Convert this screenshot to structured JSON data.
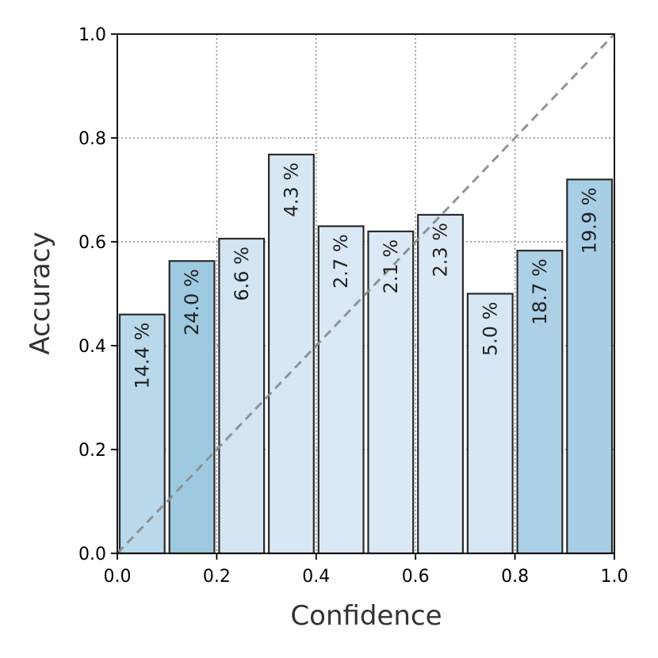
{
  "chart_data": {
    "type": "bar",
    "title": "",
    "xlabel": "Confidence",
    "ylabel": "Accuracy",
    "xlim": [
      0.0,
      1.0
    ],
    "ylim": [
      0.0,
      1.0
    ],
    "grid": true,
    "bins": [
      {
        "x_start": 0.0,
        "x_end": 0.1,
        "accuracy": 0.46,
        "label": "14.4 %",
        "color": "#b9d9eb"
      },
      {
        "x_start": 0.1,
        "x_end": 0.2,
        "accuracy": 0.563,
        "label": "24.0 %",
        "color": "#9ecae1"
      },
      {
        "x_start": 0.2,
        "x_end": 0.3,
        "accuracy": 0.606,
        "label": "6.6 %",
        "color": "#d3e4f2"
      },
      {
        "x_start": 0.3,
        "x_end": 0.4,
        "accuracy": 0.768,
        "label": "4.3 %",
        "color": "#d7e7f4"
      },
      {
        "x_start": 0.4,
        "x_end": 0.5,
        "accuracy": 0.63,
        "label": "2.7 %",
        "color": "#dae8f5"
      },
      {
        "x_start": 0.5,
        "x_end": 0.6,
        "accuracy": 0.62,
        "label": "2.1 %",
        "color": "#dbe9f6"
      },
      {
        "x_start": 0.6,
        "x_end": 0.7,
        "accuracy": 0.652,
        "label": "2.3 %",
        "color": "#dbe9f6"
      },
      {
        "x_start": 0.7,
        "x_end": 0.8,
        "accuracy": 0.5,
        "label": "5.0 %",
        "color": "#d6e6f4"
      },
      {
        "x_start": 0.8,
        "x_end": 0.9,
        "accuracy": 0.583,
        "label": "18.7 %",
        "color": "#acd0e6"
      },
      {
        "x_start": 0.9,
        "x_end": 1.0,
        "accuracy": 0.72,
        "label": "19.9 %",
        "color": "#a8cee5"
      }
    ],
    "x_ticks": [
      "0.0",
      "0.2",
      "0.4",
      "0.6",
      "0.8",
      "1.0"
    ],
    "y_ticks": [
      "0.0",
      "0.2",
      "0.4",
      "0.6",
      "0.8",
      "1.0"
    ],
    "reference_line": {
      "from": [
        0.0,
        0.0
      ],
      "to": [
        1.0,
        1.0
      ],
      "style": "dashed",
      "color": "#8e8e8e"
    }
  }
}
